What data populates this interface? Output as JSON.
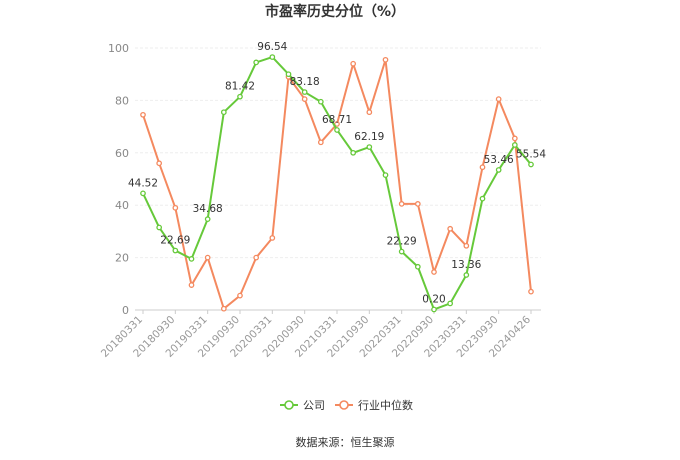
{
  "chart_data": {
    "type": "line",
    "title": "市盈率历史分位（%）",
    "ylim": [
      0,
      100
    ],
    "yticks": [
      0,
      20,
      40,
      60,
      80,
      100
    ],
    "grid": true,
    "legend_position": "bottom",
    "x_tick_labels": [
      "20180331",
      "20180930",
      "20190331",
      "20190930",
      "20200331",
      "20200930",
      "20210331",
      "20210930",
      "20220331",
      "20220930",
      "20230331",
      "20230930",
      "20240426"
    ],
    "x": [
      "20180331",
      "20180630",
      "20180930",
      "20181231",
      "20190331",
      "20190630",
      "20190930",
      "20191231",
      "20200331",
      "20200630",
      "20200930",
      "20201231",
      "20210331",
      "20210630",
      "20210930",
      "20211231",
      "20220331",
      "20220630",
      "20220930",
      "20221231",
      "20230331",
      "20230630",
      "20230930",
      "20231231",
      "20240426"
    ],
    "series": [
      {
        "name": "公司",
        "color": "#66c93a",
        "values": [
          44.52,
          31.5,
          22.69,
          19.5,
          34.68,
          75.5,
          81.42,
          94.5,
          96.54,
          90.0,
          83.18,
          79.5,
          68.71,
          60.0,
          62.19,
          51.5,
          22.29,
          16.5,
          0.2,
          2.5,
          13.36,
          42.5,
          53.46,
          63.0,
          55.54
        ]
      },
      {
        "name": "行业中位数",
        "color": "#f4895f",
        "values": [
          74.5,
          56.0,
          39.0,
          9.5,
          20.0,
          0.5,
          5.5,
          20.0,
          27.5,
          89.0,
          80.5,
          64.0,
          71.0,
          94.0,
          75.5,
          95.5,
          40.5,
          40.5,
          14.5,
          31.0,
          24.5,
          54.5,
          80.5,
          65.5,
          7.0
        ]
      }
    ],
    "data_labels": [
      {
        "series": 0,
        "index": 0,
        "text": "44.52"
      },
      {
        "series": 0,
        "index": 2,
        "text": "22.69"
      },
      {
        "series": 0,
        "index": 4,
        "text": "34.68"
      },
      {
        "series": 0,
        "index": 6,
        "text": "81.42"
      },
      {
        "series": 0,
        "index": 8,
        "text": "96.54"
      },
      {
        "series": 0,
        "index": 10,
        "text": "83.18"
      },
      {
        "series": 0,
        "index": 12,
        "text": "68.71"
      },
      {
        "series": 0,
        "index": 14,
        "text": "62.19"
      },
      {
        "series": 0,
        "index": 16,
        "text": "22.29"
      },
      {
        "series": 0,
        "index": 18,
        "text": "0.20"
      },
      {
        "series": 0,
        "index": 20,
        "text": "13.36"
      },
      {
        "series": 0,
        "index": 22,
        "text": "53.46"
      },
      {
        "series": 0,
        "index": 24,
        "text": "55.54"
      }
    ],
    "source": "数据来源：恒生聚源"
  }
}
